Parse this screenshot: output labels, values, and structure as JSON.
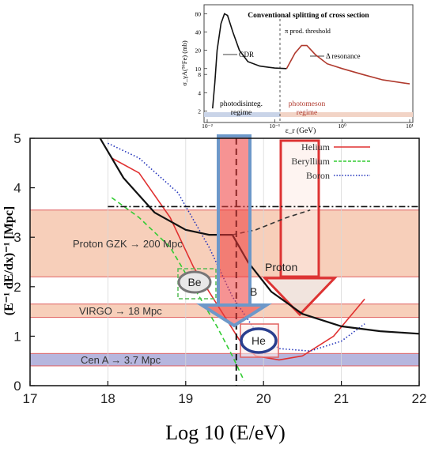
{
  "chart_data": [
    {
      "type": "line",
      "title": "Conventional splitting of cross section",
      "xlabel": "ε_r (GeV)",
      "ylabel": "σ_γA(⁵⁶Fe) (mb)",
      "xscale": "log",
      "yscale": "log",
      "xlim": [
        0.01,
        10
      ],
      "ylim": [
        1.5,
        100
      ],
      "x_ticks": [
        "10⁻²",
        "10⁻¹",
        "10⁰",
        "10¹"
      ],
      "y_ticks": [
        "80",
        "40",
        "20",
        "10",
        "8",
        "4",
        "2"
      ],
      "threshold_label": "π prod. threshold",
      "threshold_x": 0.15,
      "annotations": {
        "gdr": "GDR",
        "delta": "Δ resonance",
        "regime_left_1": "photodisinteg.",
        "regime_left_2": "regime",
        "regime_right_1": "photomeson",
        "regime_right_2": "regime"
      },
      "series": [
        {
          "color": "#111111",
          "points": [
            [
              0.012,
              2.2
            ],
            [
              0.013,
              6
            ],
            [
              0.014,
              20
            ],
            [
              0.016,
              55
            ],
            [
              0.018,
              80
            ],
            [
              0.02,
              75
            ],
            [
              0.024,
              40
            ],
            [
              0.03,
              20
            ],
            [
              0.04,
              13
            ],
            [
              0.06,
              11
            ],
            [
              0.08,
              10.5
            ],
            [
              0.1,
              10.2
            ],
            [
              0.15,
              10
            ]
          ]
        },
        {
          "color": "#b03a2e",
          "points": [
            [
              0.15,
              10
            ],
            [
              0.2,
              18
            ],
            [
              0.25,
              24
            ],
            [
              0.3,
              24
            ],
            [
              0.4,
              17
            ],
            [
              0.6,
              12
            ],
            [
              1,
              10
            ],
            [
              2,
              8
            ],
            [
              4,
              6.5
            ],
            [
              10,
              5.6
            ]
          ]
        }
      ]
    },
    {
      "type": "line",
      "xlabel": "Log 10 (E/eV)",
      "ylabel": "(E⁻¹ dE/dx)⁻¹ [Mpc]",
      "xlim": [
        17,
        22
      ],
      "ylim": [
        0,
        5
      ],
      "x_ticks": [
        "17",
        "18",
        "19",
        "20",
        "21",
        "22"
      ],
      "y_ticks": [
        "0",
        "1",
        "2",
        "3",
        "4",
        "5"
      ],
      "legend": [
        "Helium",
        "Beryllium",
        "Boron"
      ],
      "legend_position": "top-right",
      "bands": [
        {
          "label": "Proton GZK → 200 Mpc",
          "y0": 2.2,
          "y1": 3.55,
          "color": "#f6c7ae"
        },
        {
          "label": "VIRGO → 18 Mpc",
          "y0": 1.38,
          "y1": 1.65,
          "color": "#f6c7ae"
        },
        {
          "label": "Cen A → 3.7 Mpc",
          "y0": 0.4,
          "y1": 0.65,
          "color": "#a9a9d8"
        }
      ],
      "labels": {
        "proton": "Proton",
        "be": "Be",
        "he": "He",
        "b": "B"
      },
      "cut_x": 19.65,
      "series": [
        {
          "name": "Helium",
          "color": "#e03030",
          "style": "solid",
          "points": [
            [
              18.05,
              4.6
            ],
            [
              18.4,
              4.3
            ],
            [
              18.8,
              3.4
            ],
            [
              19.1,
              2.4
            ],
            [
              19.3,
              1.9
            ],
            [
              19.5,
              1.4
            ],
            [
              19.7,
              0.9
            ],
            [
              19.9,
              0.6
            ],
            [
              20.2,
              0.52
            ],
            [
              20.5,
              0.6
            ],
            [
              20.9,
              1.0
            ],
            [
              21.3,
              1.75
            ]
          ]
        },
        {
          "name": "Beryllium",
          "color": "#33cc33",
          "style": "dashed",
          "points": [
            [
              18.05,
              3.8
            ],
            [
              18.4,
              3.4
            ],
            [
              18.8,
              2.8
            ],
            [
              19.1,
              2.0
            ],
            [
              19.4,
              1.2
            ],
            [
              19.6,
              0.6
            ],
            [
              19.75,
              0.1
            ]
          ]
        },
        {
          "name": "Boron",
          "color": "#2233bb",
          "style": "dotted",
          "points": [
            [
              18.0,
              4.9
            ],
            [
              18.4,
              4.6
            ],
            [
              18.9,
              3.9
            ],
            [
              19.3,
              2.8
            ],
            [
              19.6,
              1.8
            ],
            [
              19.9,
              1.1
            ],
            [
              20.2,
              0.75
            ],
            [
              20.6,
              0.7
            ],
            [
              21.0,
              0.9
            ],
            [
              21.3,
              1.25
            ]
          ]
        },
        {
          "name": "",
          "color": "#111111",
          "style": "solid",
          "points": [
            [
              17.9,
              5.0
            ],
            [
              18.2,
              4.2
            ],
            [
              18.6,
              3.5
            ],
            [
              19.0,
              3.15
            ],
            [
              19.3,
              3.05
            ],
            [
              19.6,
              3.05
            ],
            [
              19.8,
              2.5
            ],
            [
              20.1,
              1.9
            ],
            [
              20.5,
              1.45
            ],
            [
              21.0,
              1.2
            ],
            [
              21.5,
              1.1
            ],
            [
              22.0,
              1.05
            ]
          ]
        },
        {
          "name": "",
          "color": "#333333",
          "style": "dashed",
          "points": [
            [
              19.6,
              3.05
            ],
            [
              19.9,
              3.15
            ],
            [
              20.3,
              3.4
            ],
            [
              20.6,
              3.55
            ]
          ]
        },
        {
          "name": "",
          "color": "#111111",
          "style": "dashdot",
          "points": [
            [
              18.0,
              3.62
            ],
            [
              22.0,
              3.62
            ]
          ]
        }
      ]
    }
  ]
}
